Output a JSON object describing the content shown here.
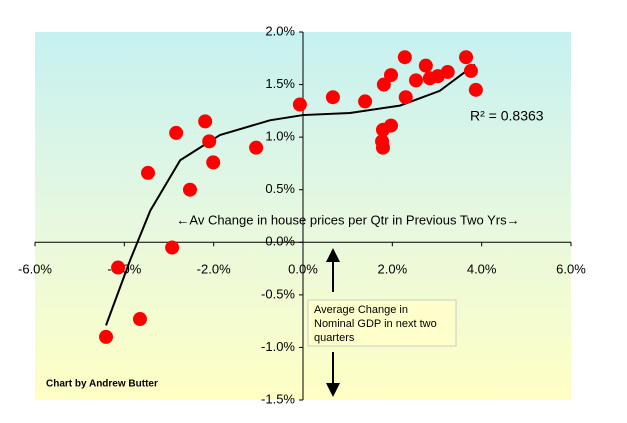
{
  "chart_data": {
    "type": "scatter",
    "series": [
      {
        "color": "#ff0000",
        "x": [
          -4.41,
          -4.14,
          -3.65,
          -3.47,
          -2.93,
          -2.84,
          -2.53,
          -2.19,
          -2.1,
          -2.01,
          -1.05,
          -0.07,
          0.67,
          1.39,
          1.97,
          1.79,
          1.77,
          1.79,
          1.81,
          1.97,
          2.28,
          2.3,
          2.53,
          2.75,
          2.84,
          3.02,
          3.24,
          3.65,
          3.76,
          3.87
        ],
        "values": [
          -0.9,
          -0.24,
          -0.73,
          0.66,
          -0.05,
          1.04,
          0.5,
          1.15,
          0.96,
          0.76,
          0.9,
          1.31,
          1.38,
          1.34,
          1.11,
          1.07,
          0.96,
          0.9,
          1.5,
          1.59,
          1.76,
          1.38,
          1.54,
          1.68,
          1.56,
          1.58,
          1.62,
          1.76,
          1.63,
          1.45
        ]
      }
    ],
    "trend": {
      "color": "#000000",
      "x": [
        -4.41,
        -3.87,
        -3.42,
        -2.75,
        -1.86,
        -0.74,
        0,
        1.05,
        2.17,
        3.06,
        3.85
      ],
      "values": [
        -0.79,
        -0.17,
        0.3,
        0.78,
        1.02,
        1.16,
        1.21,
        1.23,
        1.3,
        1.44,
        1.69
      ]
    },
    "xlim": [
      -6,
      6
    ],
    "ylim": [
      -1.5,
      2.0
    ],
    "xticks": [
      {
        "value": -6,
        "label": "-6.0%"
      },
      {
        "value": -4,
        "label": "-4.0%"
      },
      {
        "value": -2,
        "label": "-2.0%"
      },
      {
        "value": 0,
        "label": "0.0%"
      },
      {
        "value": 2,
        "label": "2.0%"
      },
      {
        "value": 4,
        "label": "4.0%"
      },
      {
        "value": 6,
        "label": "6.0%"
      }
    ],
    "yticks": [
      {
        "value": -1.5,
        "label": "-1.5%"
      },
      {
        "value": -1,
        "label": "-1.0%"
      },
      {
        "value": -0.5,
        "label": "-0.5%"
      },
      {
        "value": 0,
        "label": "0.0%"
      },
      {
        "value": 0.5,
        "label": "0.5%"
      },
      {
        "value": 1,
        "label": "1.0%"
      },
      {
        "value": 1.5,
        "label": "1.5%"
      },
      {
        "value": 2,
        "label": "2.0%"
      }
    ],
    "r_squared": "R² = 0.8363",
    "x_label": "←Av Change in house prices per Qtr in Previous Two Yrs→",
    "y_label": [
      "Average Change in",
      "Nominal GDP in next two",
      "quarters"
    ],
    "credit": "Chart by Andrew Butter"
  }
}
